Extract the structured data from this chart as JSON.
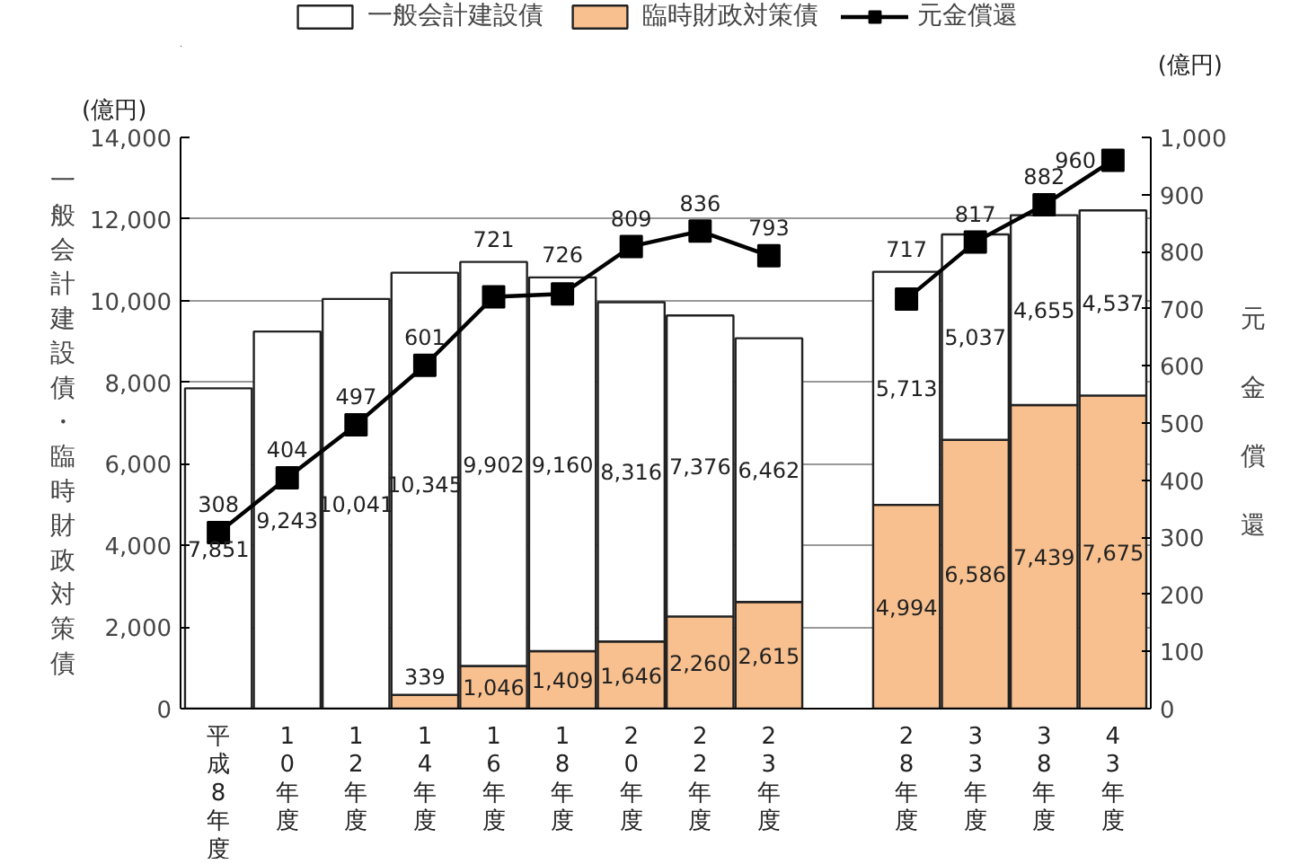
{
  "chart_data": {
    "type": "bar",
    "stacked": true,
    "categories": [
      "平成8年度",
      "10年度",
      "12年度",
      "14年度",
      "16年度",
      "18年度",
      "20年度",
      "22年度",
      "23年度",
      null,
      "28年度",
      "33年度",
      "38年度",
      "43年度"
    ],
    "series": [
      {
        "name": "臨時財政対策債",
        "color": "#f8c08f",
        "values": [
          null,
          null,
          null,
          339,
          1046,
          1409,
          1646,
          2260,
          2615,
          null,
          4994,
          6586,
          7439,
          7675
        ],
        "value_labels": [
          null,
          null,
          null,
          "339",
          "1,046",
          "1,409",
          "1,646",
          "2,260",
          "2,615",
          null,
          "4,994",
          "6,586",
          "7,439",
          "7,675"
        ]
      },
      {
        "name": "一般会計建設債",
        "color": "#ffffff",
        "values": [
          7851,
          9243,
          10041,
          10345,
          9902,
          9160,
          8316,
          7376,
          6462,
          null,
          5713,
          5037,
          4655,
          4537
        ],
        "value_labels": [
          "7,851",
          "9,243",
          "10,041",
          "10,345",
          "9,902",
          "9,160",
          "8,316",
          "7,376",
          "6,462",
          null,
          "5,713",
          "5,037",
          "4,655",
          "4,537"
        ]
      },
      {
        "name": "元金償還",
        "type": "line",
        "axis": "y2",
        "color": "#000000",
        "marker": "square",
        "values": [
          308,
          404,
          497,
          601,
          721,
          726,
          809,
          836,
          793,
          null,
          717,
          817,
          882,
          960
        ],
        "value_labels": [
          "308",
          "404",
          "497",
          "601",
          "721",
          "726",
          "809",
          "836",
          "793",
          null,
          "717",
          "817",
          "882",
          "960"
        ]
      }
    ],
    "ylabel": "一般会計建設債・臨時財政対策債",
    "y2label": "元金償還",
    "annotations": [
      "(億円)",
      "(億円)"
    ],
    "ylim": [
      0,
      14000
    ],
    "yticks": [
      0,
      {
        "value": 2000,
        "label": "2,000"
      },
      {
        "value": 4000,
        "label": "4,000"
      },
      {
        "value": 6000,
        "label": "6,000"
      },
      {
        "value": 8000,
        "label": "8,000"
      },
      {
        "value": 10000,
        "label": "10,000"
      },
      {
        "value": 12000,
        "label": "12,000"
      },
      {
        "value": 14000,
        "label": "14,000"
      }
    ],
    "y2lim": [
      0,
      1000
    ],
    "y2ticks": [
      0,
      100,
      200,
      300,
      400,
      500,
      600,
      700,
      800,
      900,
      {
        "value": 1000,
        "label": "1,000"
      }
    ],
    "grid": "y",
    "legend": "top"
  }
}
